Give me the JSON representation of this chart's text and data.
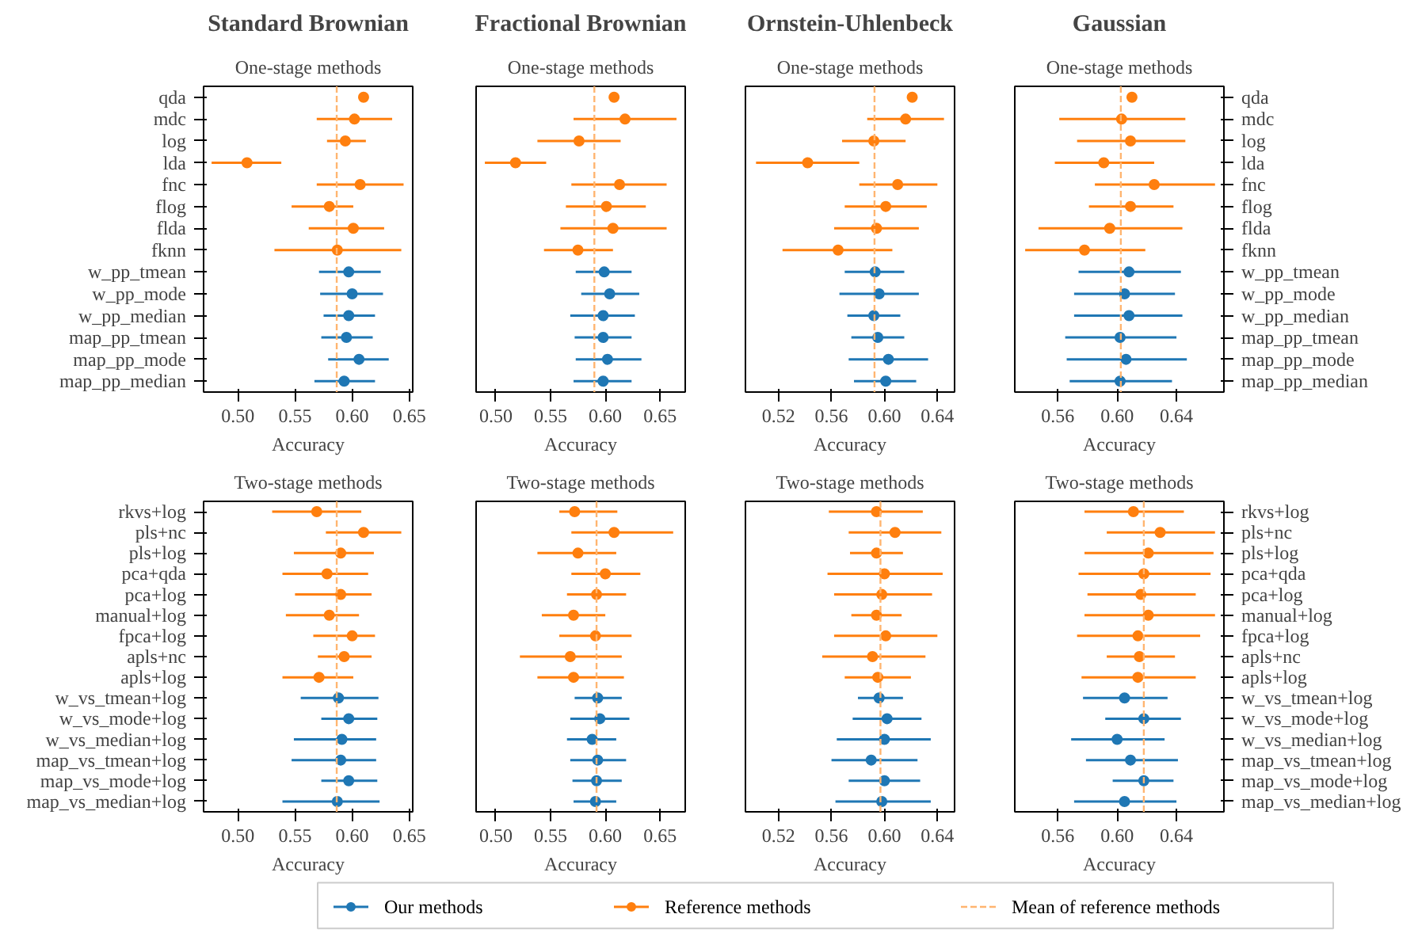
{
  "chart_data": [
    {
      "type": "scatter",
      "orientation": "horizontal",
      "title": "Standard Brownian",
      "subtitle": "One-stage methods",
      "xlabel": "Accuracy",
      "marker": "circle",
      "categories": [
        "qda",
        "mdc",
        "log",
        "lda",
        "fnc",
        "flog",
        "flda",
        "fknn",
        "w_pp_tmean",
        "w_pp_mode",
        "w_pp_median",
        "map_pp_tmean",
        "map_pp_mode",
        "map_pp_median"
      ],
      "xlim": [
        0.47,
        0.653
      ],
      "xticks": [
        {
          "value": 0.5,
          "label": "0.50"
        },
        {
          "value": 0.55,
          "label": "0.55"
        },
        {
          "value": 0.6,
          "label": "0.60"
        },
        {
          "value": 0.65,
          "label": "0.65"
        }
      ],
      "series": [
        {
          "color": "#1f77b4",
          "values": [
            null,
            null,
            null,
            null,
            null,
            null,
            null,
            null,
            0.597,
            0.6,
            0.597,
            0.595,
            0.606,
            0.593
          ],
          "errors": [
            null,
            null,
            null,
            null,
            null,
            null,
            null,
            null,
            [
              0.571,
              0.625
            ],
            [
              0.572,
              0.627
            ],
            [
              0.575,
              0.62
            ],
            [
              0.573,
              0.618
            ],
            [
              0.579,
              0.632
            ],
            [
              0.567,
              0.62
            ]
          ]
        },
        {
          "color": "#ff7f0e",
          "values": [
            0.61,
            0.602,
            0.594,
            0.508,
            0.607,
            0.58,
            0.601,
            0.587,
            null,
            null,
            null,
            null,
            null,
            null
          ],
          "errors": [
            null,
            [
              0.569,
              0.635
            ],
            [
              0.578,
              0.612
            ],
            [
              0.477,
              0.538
            ],
            [
              0.569,
              0.645
            ],
            [
              0.547,
              0.601
            ],
            [
              0.562,
              0.628
            ],
            [
              0.532,
              0.643
            ],
            null,
            null,
            null,
            null,
            null,
            null
          ]
        }
      ],
      "ref_lines": [
        {
          "axis": "x",
          "value": 0.5865,
          "color": "#ffb570",
          "line_style": "dashed"
        }
      ]
    },
    {
      "type": "scatter",
      "orientation": "horizontal",
      "title": "Fractional Brownian",
      "subtitle": "One-stage methods",
      "xlabel": "Accuracy",
      "marker": "circle",
      "tick_labels": "x",
      "categories": [
        null,
        null,
        null,
        null,
        null,
        null,
        null,
        null,
        null,
        null,
        null,
        null,
        null,
        null
      ],
      "xlim": [
        0.482,
        0.673
      ],
      "xticks": [
        {
          "value": 0.5,
          "label": "0.50"
        },
        {
          "value": 0.55,
          "label": "0.55"
        },
        {
          "value": 0.6,
          "label": "0.60"
        },
        {
          "value": 0.65,
          "label": "0.65"
        }
      ],
      "series": [
        {
          "color": "#1f77b4",
          "values": [
            null,
            null,
            null,
            null,
            null,
            null,
            null,
            null,
            0.599,
            0.604,
            0.598,
            0.598,
            0.602,
            0.598
          ],
          "errors": [
            null,
            null,
            null,
            null,
            null,
            null,
            null,
            null,
            [
              0.573,
              0.624
            ],
            [
              0.578,
              0.631
            ],
            [
              0.568,
              0.627
            ],
            [
              0.572,
              0.624
            ],
            [
              0.573,
              0.633
            ],
            [
              0.571,
              0.624
            ]
          ]
        },
        {
          "color": "#ff7f0e",
          "values": [
            0.608,
            0.618,
            0.576,
            0.518,
            0.613,
            0.601,
            0.607,
            0.575,
            null,
            null,
            null,
            null,
            null,
            null
          ],
          "errors": [
            null,
            [
              0.571,
              0.665
            ],
            [
              0.538,
              0.614
            ],
            [
              0.49,
              0.546
            ],
            [
              0.569,
              0.656
            ],
            [
              0.564,
              0.637
            ],
            [
              0.559,
              0.656
            ],
            [
              0.544,
              0.607
            ],
            null,
            null,
            null,
            null,
            null,
            null
          ]
        }
      ],
      "ref_lines": [
        {
          "axis": "x",
          "value": 0.59,
          "color": "#ffb570",
          "line_style": "dashed"
        }
      ]
    },
    {
      "type": "scatter",
      "orientation": "horizontal",
      "title": "Ornstein-Uhlenbeck",
      "subtitle": "One-stage methods",
      "xlabel": "Accuracy",
      "marker": "circle",
      "tick_labels": "x",
      "categories": [
        null,
        null,
        null,
        null,
        null,
        null,
        null,
        null,
        null,
        null,
        null,
        null,
        null,
        null
      ],
      "xlim": [
        0.495,
        0.653
      ],
      "xticks": [
        0.52,
        0.56,
        {
          "value": 0.6,
          "label": "0.60"
        },
        0.64
      ],
      "series": [
        {
          "color": "#1f77b4",
          "values": [
            null,
            null,
            null,
            null,
            null,
            null,
            null,
            null,
            0.593,
            0.596,
            0.592,
            0.595,
            0.603,
            0.601
          ],
          "errors": [
            null,
            null,
            null,
            null,
            null,
            null,
            null,
            null,
            [
              0.57,
              0.615
            ],
            [
              0.566,
              0.626
            ],
            [
              0.572,
              0.612
            ],
            [
              0.575,
              0.615
            ],
            [
              0.573,
              0.633
            ],
            [
              0.577,
              0.624
            ]
          ]
        },
        {
          "color": "#ff7f0e",
          "values": [
            0.621,
            0.616,
            0.592,
            0.542,
            0.61,
            0.601,
            0.594,
            0.565,
            null,
            null,
            null,
            null,
            null,
            null
          ],
          "errors": [
            null,
            [
              0.587,
              0.645
            ],
            [
              0.568,
              0.616
            ],
            [
              0.503,
              0.581
            ],
            [
              0.581,
              0.64
            ],
            [
              0.57,
              0.632
            ],
            [
              0.562,
              0.626
            ],
            [
              0.523,
              0.606
            ],
            null,
            null,
            null,
            null,
            null,
            null
          ]
        }
      ],
      "ref_lines": [
        {
          "axis": "x",
          "value": 0.5925,
          "color": "#ffb570",
          "line_style": "dashed"
        }
      ]
    },
    {
      "type": "scatter",
      "orientation": "horizontal",
      "title": "Gaussian",
      "subtitle": "One-stage methods",
      "xlabel": "Accuracy",
      "marker": "circle",
      "categories": [
        "qda",
        "mdc",
        "log",
        "lda",
        "fnc",
        "flog",
        "flda",
        "fknn",
        "w_pp_tmean",
        "w_pp_mode",
        "w_pp_median",
        "map_pp_tmean",
        "map_pp_mode",
        "map_pp_median"
      ],
      "xlim": [
        0.531,
        0.672
      ],
      "xticks": [
        0.56,
        {
          "value": 0.6,
          "label": "0.60"
        },
        0.64
      ],
      "series": [
        {
          "color": "#1f77b4",
          "values": [
            null,
            null,
            null,
            null,
            null,
            null,
            null,
            null,
            0.608,
            0.605,
            0.608,
            0.602,
            0.606,
            0.602
          ],
          "errors": [
            null,
            null,
            null,
            null,
            null,
            null,
            null,
            null,
            [
              0.574,
              0.643
            ],
            [
              0.571,
              0.639
            ],
            [
              0.571,
              0.644
            ],
            [
              0.565,
              0.64
            ],
            [
              0.566,
              0.647
            ],
            [
              0.568,
              0.637
            ]
          ]
        },
        {
          "color": "#ff7f0e",
          "values": [
            0.61,
            0.603,
            0.609,
            0.591,
            0.625,
            0.609,
            0.595,
            0.578,
            null,
            null,
            null,
            null,
            null,
            null
          ],
          "errors": [
            null,
            [
              0.561,
              0.646
            ],
            [
              0.573,
              0.646
            ],
            [
              0.558,
              0.625
            ],
            [
              0.585,
              0.666
            ],
            [
              0.581,
              0.638
            ],
            [
              0.547,
              0.644
            ],
            [
              0.538,
              0.619
            ],
            null,
            null,
            null,
            null,
            null,
            null
          ]
        }
      ],
      "ref_lines": [
        {
          "axis": "x",
          "value": 0.6025,
          "color": "#ffb570",
          "line_style": "dashed"
        }
      ]
    },
    {
      "type": "scatter",
      "orientation": "horizontal",
      "subtitle": "Two-stage methods",
      "xlabel": "Accuracy",
      "marker": "circle",
      "categories": [
        "rkvs+log",
        "pls+nc",
        "pls+log",
        "pca+qda",
        "pca+log",
        "manual+log",
        "fpca+log",
        "apls+nc",
        "apls+log",
        "w_vs_tmean+log",
        "w_vs_mode+log",
        "w_vs_median+log",
        "map_vs_tmean+log",
        "map_vs_mode+log",
        "map_vs_median+log"
      ],
      "xlim": [
        0.47,
        0.653
      ],
      "xticks": [
        {
          "value": 0.5,
          "label": "0.50"
        },
        {
          "value": 0.55,
          "label": "0.55"
        },
        {
          "value": 0.6,
          "label": "0.60"
        },
        {
          "value": 0.65,
          "label": "0.65"
        }
      ],
      "series": [
        {
          "color": "#1f77b4",
          "values": [
            null,
            null,
            null,
            null,
            null,
            null,
            null,
            null,
            null,
            0.588,
            0.597,
            0.591,
            0.59,
            0.597,
            0.587
          ],
          "errors": [
            null,
            null,
            null,
            null,
            null,
            null,
            null,
            null,
            null,
            [
              0.555,
              0.623
            ],
            [
              0.573,
              0.622
            ],
            [
              0.549,
              0.621
            ],
            [
              0.547,
              0.621
            ],
            [
              0.573,
              0.622
            ],
            [
              0.539,
              0.624
            ]
          ]
        },
        {
          "color": "#ff7f0e",
          "values": [
            0.569,
            0.61,
            0.59,
            0.578,
            0.59,
            0.58,
            0.6,
            0.593,
            0.571,
            null,
            null,
            null,
            null,
            null,
            null
          ],
          "errors": [
            [
              0.53,
              0.608
            ],
            [
              0.577,
              0.643
            ],
            [
              0.549,
              0.619
            ],
            [
              0.539,
              0.614
            ],
            [
              0.55,
              0.617
            ],
            [
              0.542,
              0.606
            ],
            [
              0.566,
              0.62
            ],
            [
              0.57,
              0.617
            ],
            [
              0.539,
              0.601
            ],
            null,
            null,
            null,
            null,
            null,
            null
          ]
        }
      ],
      "ref_lines": [
        {
          "axis": "x",
          "value": 0.5865,
          "color": "#ffb570",
          "line_style": "dashed"
        }
      ]
    },
    {
      "type": "scatter",
      "orientation": "horizontal",
      "subtitle": "Two-stage methods",
      "xlabel": "Accuracy",
      "marker": "circle",
      "tick_labels": "x",
      "categories": [
        null,
        null,
        null,
        null,
        null,
        null,
        null,
        null,
        null,
        null,
        null,
        null,
        null,
        null,
        null
      ],
      "xlim": [
        0.482,
        0.673
      ],
      "xticks": [
        {
          "value": 0.5,
          "label": "0.50"
        },
        {
          "value": 0.55,
          "label": "0.55"
        },
        {
          "value": 0.6,
          "label": "0.60"
        },
        {
          "value": 0.65,
          "label": "0.65"
        }
      ],
      "series": [
        {
          "color": "#1f77b4",
          "values": [
            null,
            null,
            null,
            null,
            null,
            null,
            null,
            null,
            null,
            0.593,
            0.595,
            0.588,
            0.593,
            0.592,
            0.591
          ],
          "errors": [
            null,
            null,
            null,
            null,
            null,
            null,
            null,
            null,
            null,
            [
              0.572,
              0.615
            ],
            [
              0.568,
              0.622
            ],
            [
              0.565,
              0.61
            ],
            [
              0.568,
              0.619
            ],
            [
              0.57,
              0.615
            ],
            [
              0.571,
              0.61
            ]
          ]
        },
        {
          "color": "#ff7f0e",
          "values": [
            0.572,
            0.608,
            0.575,
            0.6,
            0.592,
            0.571,
            0.591,
            0.568,
            0.571,
            null,
            null,
            null,
            null,
            null,
            null
          ],
          "errors": [
            [
              0.558,
              0.611
            ],
            [
              0.569,
              0.662
            ],
            [
              0.538,
              0.61
            ],
            [
              0.569,
              0.632
            ],
            [
              0.565,
              0.619
            ],
            [
              0.542,
              0.6
            ],
            [
              0.558,
              0.624
            ],
            [
              0.522,
              0.615
            ],
            [
              0.538,
              0.617
            ],
            null,
            null,
            null,
            null,
            null,
            null
          ]
        }
      ],
      "ref_lines": [
        {
          "axis": "x",
          "value": 0.592,
          "color": "#ffb570",
          "line_style": "dashed"
        }
      ]
    },
    {
      "type": "scatter",
      "orientation": "horizontal",
      "subtitle": "Two-stage methods",
      "xlabel": "Accuracy",
      "marker": "circle",
      "tick_labels": "x",
      "categories": [
        null,
        null,
        null,
        null,
        null,
        null,
        null,
        null,
        null,
        null,
        null,
        null,
        null,
        null,
        null
      ],
      "xlim": [
        0.495,
        0.653
      ],
      "xticks": [
        0.52,
        0.56,
        {
          "value": 0.6,
          "label": "0.60"
        },
        0.64
      ],
      "series": [
        {
          "color": "#1f77b4",
          "values": [
            null,
            null,
            null,
            null,
            null,
            null,
            null,
            null,
            null,
            0.596,
            0.602,
            0.6,
            0.59,
            0.6,
            0.598
          ],
          "errors": [
            null,
            null,
            null,
            null,
            null,
            null,
            null,
            null,
            null,
            [
              0.58,
              0.614
            ],
            [
              0.576,
              0.628
            ],
            [
              0.564,
              0.635
            ],
            [
              0.56,
              0.625
            ],
            [
              0.573,
              0.627
            ],
            [
              0.563,
              0.635
            ]
          ]
        },
        {
          "color": "#ff7f0e",
          "values": [
            0.594,
            0.608,
            0.594,
            0.6,
            0.598,
            0.594,
            0.601,
            0.591,
            0.595,
            null,
            null,
            null,
            null,
            null,
            null
          ],
          "errors": [
            [
              0.558,
              0.629
            ],
            [
              0.573,
              0.643
            ],
            [
              0.574,
              0.614
            ],
            [
              0.557,
              0.644
            ],
            [
              0.562,
              0.636
            ],
            [
              0.575,
              0.613
            ],
            [
              0.562,
              0.64
            ],
            [
              0.553,
              0.631
            ],
            [
              0.57,
              0.62
            ],
            null,
            null,
            null,
            null,
            null,
            null
          ]
        }
      ],
      "ref_lines": [
        {
          "axis": "x",
          "value": 0.597,
          "color": "#ffb570",
          "line_style": "dashed"
        }
      ]
    },
    {
      "type": "scatter",
      "orientation": "horizontal",
      "subtitle": "Two-stage methods",
      "xlabel": "Accuracy",
      "marker": "circle",
      "legend": "bottom",
      "categories": [
        "rkvs+log",
        "pls+nc",
        "pls+log",
        "pca+qda",
        "pca+log",
        "manual+log",
        "fpca+log",
        "apls+nc",
        "apls+log",
        "w_vs_tmean+log",
        "w_vs_mode+log",
        "w_vs_median+log",
        "map_vs_tmean+log",
        "map_vs_mode+log",
        "map_vs_median+log"
      ],
      "xlim": [
        0.531,
        0.672
      ],
      "xticks": [
        0.56,
        {
          "value": 0.6,
          "label": "0.60"
        },
        0.64
      ],
      "series": [
        {
          "name": "Our methods",
          "color": "#1f77b4",
          "values": [
            null,
            null,
            null,
            null,
            null,
            null,
            null,
            null,
            null,
            0.605,
            0.618,
            0.6,
            0.609,
            0.618,
            0.605
          ],
          "errors": [
            null,
            null,
            null,
            null,
            null,
            null,
            null,
            null,
            null,
            [
              0.577,
              0.634
            ],
            [
              0.592,
              0.643
            ],
            [
              0.569,
              0.632
            ],
            [
              0.579,
              0.641
            ],
            [
              0.597,
              0.638
            ],
            [
              0.571,
              0.64
            ]
          ]
        },
        {
          "name": "Reference methods",
          "color": "#ff7f0e",
          "values": [
            0.611,
            0.629,
            0.621,
            0.618,
            0.616,
            0.621,
            0.614,
            0.615,
            0.614,
            null,
            null,
            null,
            null,
            null,
            null
          ],
          "errors": [
            [
              0.578,
              0.645
            ],
            [
              0.593,
              0.666
            ],
            [
              0.578,
              0.665
            ],
            [
              0.574,
              0.663
            ],
            [
              0.58,
              0.653
            ],
            [
              0.578,
              0.666
            ],
            [
              0.573,
              0.656
            ],
            [
              0.593,
              0.639
            ],
            [
              0.576,
              0.653
            ],
            null,
            null,
            null,
            null,
            null,
            null
          ]
        }
      ],
      "ref_lines": [
        {
          "axis": "x",
          "value": 0.618,
          "label": "Mean of reference methods",
          "color": "#ffb570",
          "line_style": "dashed"
        }
      ]
    }
  ]
}
